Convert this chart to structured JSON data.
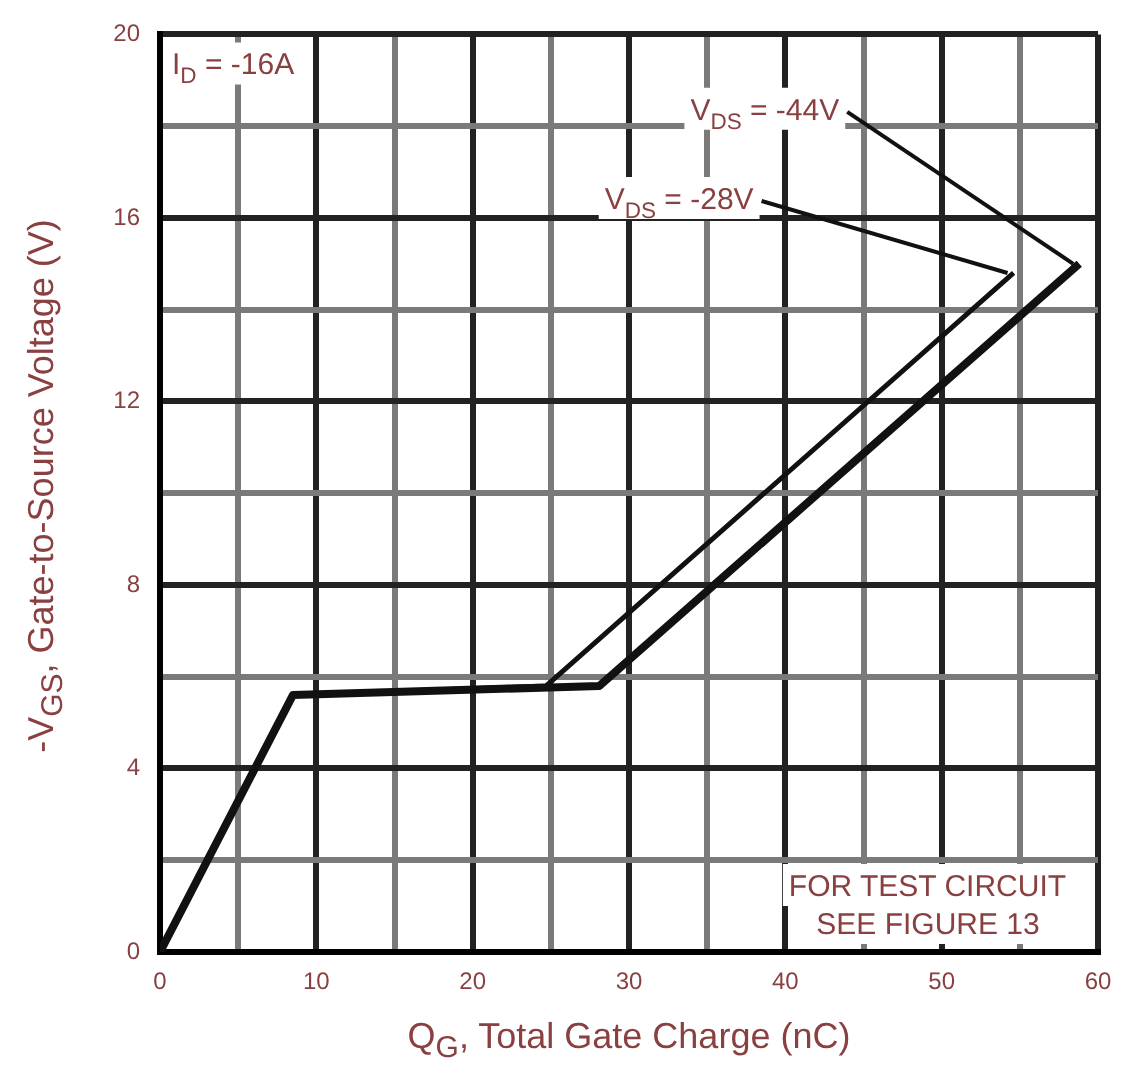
{
  "chart_data": {
    "type": "line",
    "xlabel": "Q$_{G}$, Total Gate Charge (nC)",
    "ylabel": "-V$_{GS}$, Gate-to-Source Voltage (V)",
    "annotations": [
      "I$_{D}$ = -16A",
      "FOR TEST CIRCUIT\nSEE FIGURE 13"
    ],
    "series": [
      {
        "name": "V$_{DS}$ = -44V",
        "color": "#111111",
        "x": [
          0,
          8.5,
          28.1,
          58.8
        ],
        "values": [
          0,
          5.6,
          5.8,
          15.0
        ]
      },
      {
        "name": "V$_{DS}$ = -28V",
        "color": "#111111",
        "x": [
          0,
          8.5,
          24.7,
          54.6
        ],
        "values": [
          0,
          5.6,
          5.8,
          14.8
        ]
      }
    ],
    "xlim": [
      0,
      60
    ],
    "ylim": [
      0,
      20
    ],
    "xticks": [
      0,
      {
        "value": 5,
        "label": null
      },
      10,
      {
        "value": 15,
        "label": null
      },
      20,
      {
        "value": 25,
        "label": null
      },
      30,
      {
        "value": 35,
        "label": null
      },
      40,
      {
        "value": 45,
        "label": null
      },
      50,
      {
        "value": 55,
        "label": null
      },
      60
    ],
    "yticks": [
      0,
      {
        "value": 2,
        "label": null
      },
      4,
      {
        "value": 6,
        "label": null
      },
      8,
      {
        "value": 10,
        "label": null
      },
      12,
      {
        "value": 14,
        "label": null
      },
      16,
      {
        "value": 18,
        "label": null
      },
      20
    ],
    "grid": true,
    "legend": false,
    "marker": "none",
    "line_style": "solid"
  }
}
